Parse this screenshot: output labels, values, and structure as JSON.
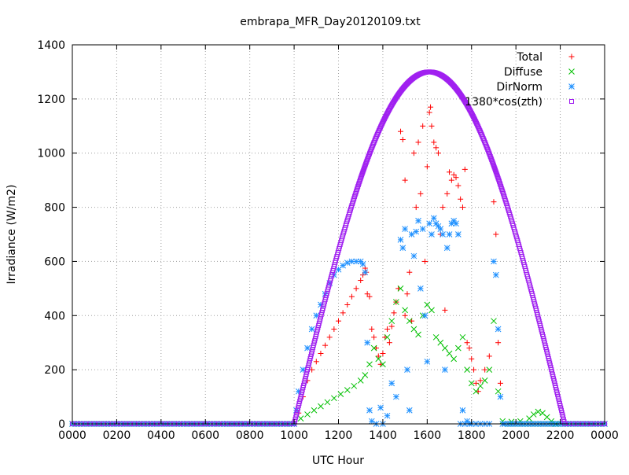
{
  "chart_data": {
    "type": "scatter",
    "title": "embrapa_MFR_Day20120109.txt",
    "xlabel": "UTC Hour",
    "ylabel": "Irradiance (W/m2)",
    "xlim": [
      0,
      24
    ],
    "ylim": [
      0,
      1400
    ],
    "grid": true,
    "legend_position": "top-right",
    "x_ticks": [
      {
        "value": 0,
        "label": "0000"
      },
      {
        "value": 2,
        "label": "0200"
      },
      {
        "value": 4,
        "label": "0400"
      },
      {
        "value": 6,
        "label": "0600"
      },
      {
        "value": 8,
        "label": "0800"
      },
      {
        "value": 10,
        "label": "1000"
      },
      {
        "value": 12,
        "label": "1200"
      },
      {
        "value": 14,
        "label": "1400"
      },
      {
        "value": 16,
        "label": "1600"
      },
      {
        "value": 18,
        "label": "1800"
      },
      {
        "value": 20,
        "label": "2000"
      },
      {
        "value": 22,
        "label": "2200"
      },
      {
        "value": 24,
        "label": "0000"
      }
    ],
    "y_ticks": [
      0,
      200,
      400,
      600,
      800,
      1000,
      1200,
      1400
    ],
    "series": [
      {
        "name": "Total",
        "marker": "plus",
        "color": "#ff0000",
        "points": [
          [
            10.0,
            0
          ],
          [
            10.2,
            40
          ],
          [
            10.4,
            100
          ],
          [
            10.6,
            160
          ],
          [
            10.8,
            200
          ],
          [
            11.0,
            230
          ],
          [
            11.2,
            260
          ],
          [
            11.4,
            290
          ],
          [
            11.6,
            320
          ],
          [
            11.8,
            350
          ],
          [
            12.0,
            380
          ],
          [
            12.2,
            410
          ],
          [
            12.4,
            440
          ],
          [
            12.6,
            470
          ],
          [
            12.8,
            500
          ],
          [
            13.0,
            530
          ],
          [
            13.1,
            550
          ],
          [
            13.2,
            575
          ],
          [
            13.25,
            560
          ],
          [
            13.3,
            480
          ],
          [
            13.4,
            470
          ],
          [
            13.5,
            350
          ],
          [
            13.6,
            320
          ],
          [
            13.7,
            280
          ],
          [
            13.8,
            250
          ],
          [
            13.9,
            220
          ],
          [
            14.0,
            260
          ],
          [
            14.1,
            320
          ],
          [
            14.2,
            350
          ],
          [
            14.3,
            300
          ],
          [
            14.4,
            360
          ],
          [
            14.5,
            410
          ],
          [
            14.6,
            450
          ],
          [
            14.7,
            500
          ],
          [
            14.8,
            1080
          ],
          [
            14.9,
            1050
          ],
          [
            15.0,
            900
          ],
          [
            15.0,
            400
          ],
          [
            15.1,
            480
          ],
          [
            15.2,
            560
          ],
          [
            15.3,
            380
          ],
          [
            15.4,
            1000
          ],
          [
            15.5,
            800
          ],
          [
            15.6,
            1040
          ],
          [
            15.7,
            850
          ],
          [
            15.8,
            1100
          ],
          [
            15.9,
            600
          ],
          [
            16.0,
            950
          ],
          [
            16.1,
            1150
          ],
          [
            16.15,
            1170
          ],
          [
            16.2,
            1100
          ],
          [
            16.3,
            1040
          ],
          [
            16.4,
            1020
          ],
          [
            16.5,
            1000
          ],
          [
            16.6,
            700
          ],
          [
            16.7,
            800
          ],
          [
            16.8,
            420
          ],
          [
            16.9,
            850
          ],
          [
            17.0,
            930
          ],
          [
            17.1,
            900
          ],
          [
            17.2,
            920
          ],
          [
            17.3,
            910
          ],
          [
            17.4,
            880
          ],
          [
            17.5,
            830
          ],
          [
            17.6,
            800
          ],
          [
            17.7,
            940
          ],
          [
            17.8,
            300
          ],
          [
            17.9,
            280
          ],
          [
            18.0,
            240
          ],
          [
            18.1,
            200
          ],
          [
            18.2,
            150
          ],
          [
            18.3,
            120
          ],
          [
            18.4,
            160
          ],
          [
            18.6,
            200
          ],
          [
            18.8,
            250
          ],
          [
            19.0,
            820
          ],
          [
            19.1,
            700
          ],
          [
            19.2,
            300
          ],
          [
            19.3,
            150
          ],
          [
            19.4,
            0
          ]
        ]
      },
      {
        "name": "Diffuse",
        "marker": "cross",
        "color": "#00c000",
        "points": [
          [
            10.0,
            0
          ],
          [
            10.3,
            20
          ],
          [
            10.6,
            35
          ],
          [
            10.9,
            50
          ],
          [
            11.2,
            65
          ],
          [
            11.5,
            80
          ],
          [
            11.8,
            95
          ],
          [
            12.1,
            110
          ],
          [
            12.4,
            125
          ],
          [
            12.7,
            140
          ],
          [
            13.0,
            160
          ],
          [
            13.2,
            180
          ],
          [
            13.4,
            220
          ],
          [
            13.6,
            280
          ],
          [
            13.8,
            240
          ],
          [
            14.0,
            220
          ],
          [
            14.2,
            320
          ],
          [
            14.4,
            380
          ],
          [
            14.6,
            450
          ],
          [
            14.8,
            500
          ],
          [
            15.0,
            420
          ],
          [
            15.2,
            380
          ],
          [
            15.4,
            350
          ],
          [
            15.6,
            330
          ],
          [
            15.8,
            400
          ],
          [
            16.0,
            440
          ],
          [
            16.2,
            420
          ],
          [
            16.4,
            320
          ],
          [
            16.6,
            300
          ],
          [
            16.8,
            280
          ],
          [
            17.0,
            260
          ],
          [
            17.2,
            240
          ],
          [
            17.4,
            280
          ],
          [
            17.6,
            320
          ],
          [
            17.8,
            200
          ],
          [
            18.0,
            150
          ],
          [
            18.2,
            120
          ],
          [
            18.4,
            140
          ],
          [
            18.6,
            160
          ],
          [
            18.8,
            200
          ],
          [
            19.0,
            380
          ],
          [
            19.2,
            120
          ],
          [
            19.4,
            10
          ],
          [
            19.8,
            8
          ],
          [
            20.2,
            10
          ],
          [
            20.6,
            20
          ],
          [
            20.8,
            35
          ],
          [
            21.0,
            45
          ],
          [
            21.2,
            40
          ],
          [
            21.4,
            25
          ],
          [
            21.6,
            10
          ],
          [
            21.8,
            0
          ]
        ]
      },
      {
        "name": "DirNorm",
        "marker": "star",
        "color": "#1e90ff",
        "points": [
          [
            10.0,
            0
          ],
          [
            10.1,
            50
          ],
          [
            10.2,
            120
          ],
          [
            10.4,
            200
          ],
          [
            10.6,
            280
          ],
          [
            10.8,
            350
          ],
          [
            11.0,
            400
          ],
          [
            11.2,
            440
          ],
          [
            11.4,
            480
          ],
          [
            11.6,
            520
          ],
          [
            11.8,
            550
          ],
          [
            12.0,
            570
          ],
          [
            12.2,
            585
          ],
          [
            12.4,
            595
          ],
          [
            12.6,
            600
          ],
          [
            12.8,
            600
          ],
          [
            13.0,
            600
          ],
          [
            13.1,
            590
          ],
          [
            13.2,
            560
          ],
          [
            13.3,
            300
          ],
          [
            13.4,
            50
          ],
          [
            13.5,
            10
          ],
          [
            13.7,
            0
          ],
          [
            13.9,
            60
          ],
          [
            14.0,
            0
          ],
          [
            14.2,
            30
          ],
          [
            14.4,
            150
          ],
          [
            14.6,
            100
          ],
          [
            14.8,
            680
          ],
          [
            14.9,
            650
          ],
          [
            15.0,
            720
          ],
          [
            15.1,
            200
          ],
          [
            15.2,
            50
          ],
          [
            15.3,
            700
          ],
          [
            15.4,
            620
          ],
          [
            15.5,
            710
          ],
          [
            15.6,
            750
          ],
          [
            15.7,
            500
          ],
          [
            15.8,
            720
          ],
          [
            15.9,
            400
          ],
          [
            16.0,
            230
          ],
          [
            16.1,
            740
          ],
          [
            16.2,
            700
          ],
          [
            16.3,
            760
          ],
          [
            16.4,
            740
          ],
          [
            16.5,
            730
          ],
          [
            16.6,
            720
          ],
          [
            16.7,
            700
          ],
          [
            16.8,
            200
          ],
          [
            16.9,
            650
          ],
          [
            17.0,
            700
          ],
          [
            17.1,
            740
          ],
          [
            17.2,
            750
          ],
          [
            17.3,
            740
          ],
          [
            17.4,
            700
          ],
          [
            17.5,
            0
          ],
          [
            17.6,
            50
          ],
          [
            17.7,
            0
          ],
          [
            17.8,
            10
          ],
          [
            17.9,
            0
          ],
          [
            18.0,
            0
          ],
          [
            18.2,
            0
          ],
          [
            18.4,
            0
          ],
          [
            18.6,
            0
          ],
          [
            18.8,
            0
          ],
          [
            19.0,
            600
          ],
          [
            19.1,
            550
          ],
          [
            19.2,
            350
          ],
          [
            19.3,
            100
          ],
          [
            19.4,
            0
          ]
        ]
      },
      {
        "name": "1380*cos(zth)",
        "marker": "square",
        "color": "#a020f0",
        "curve": {
          "start": 10.0,
          "end": 22.2,
          "peak_x": 16.1,
          "peak_y": 1300,
          "step": 0.025
        }
      }
    ]
  }
}
